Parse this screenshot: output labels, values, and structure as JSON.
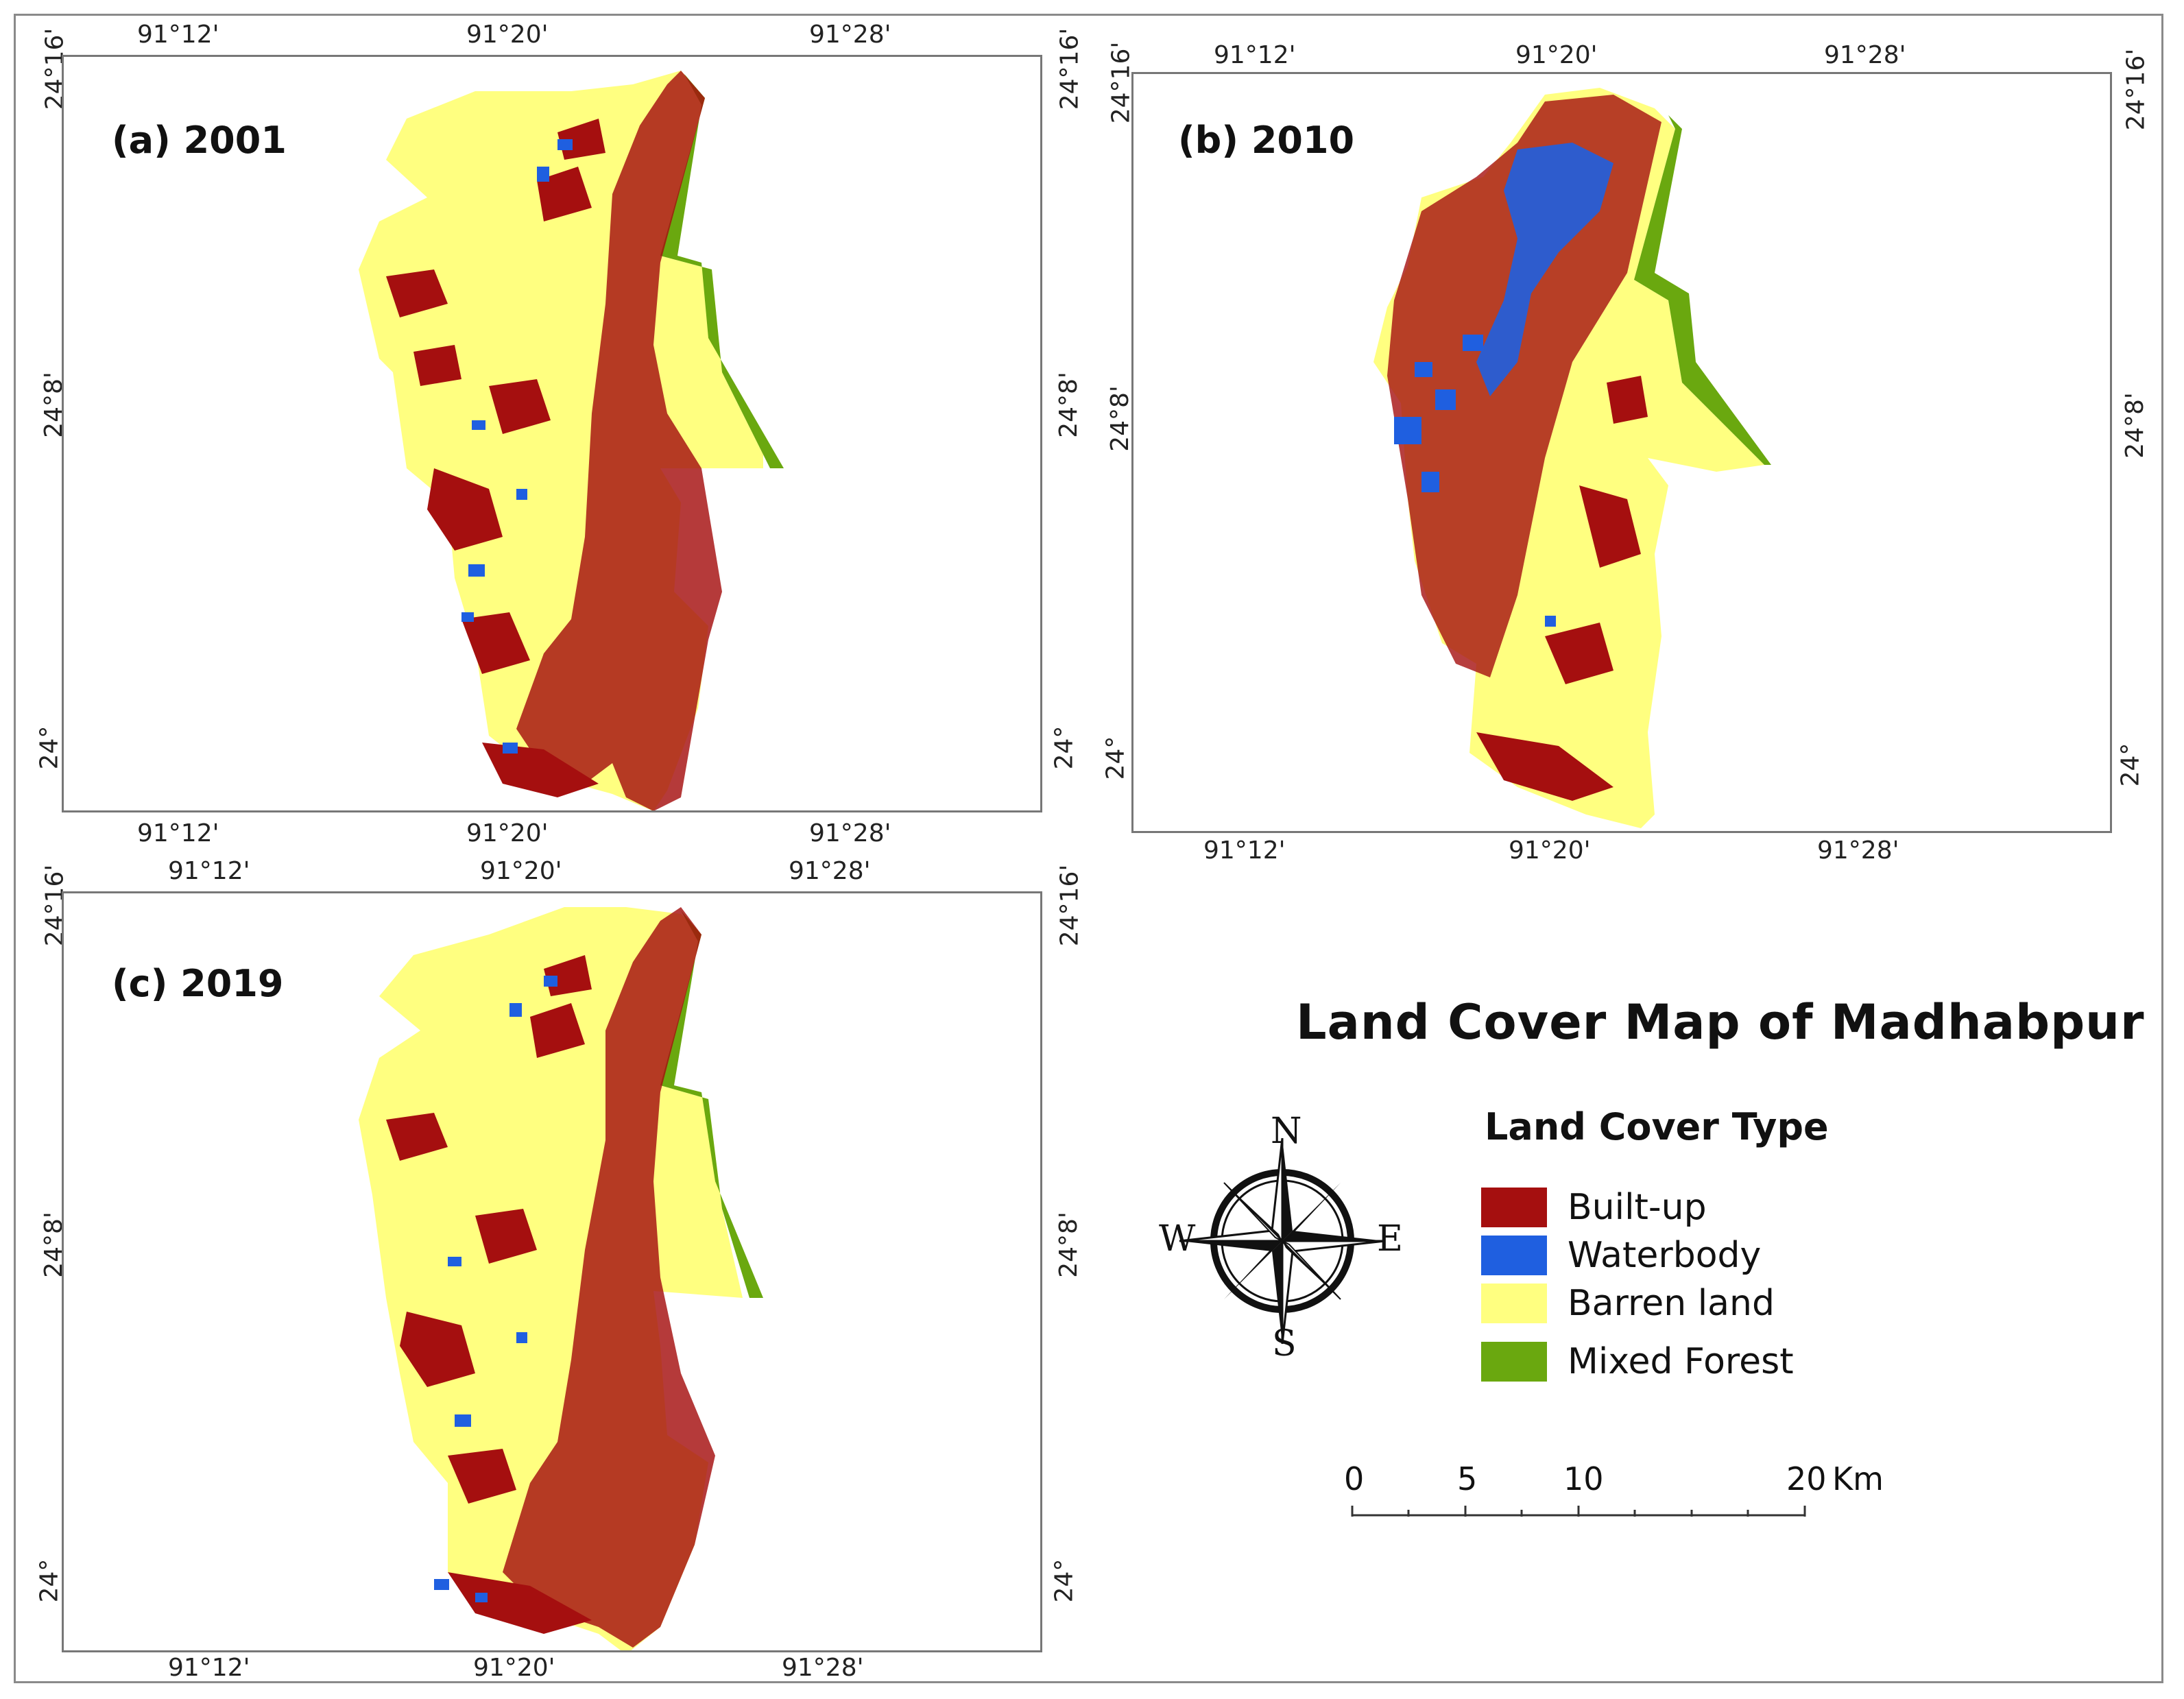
{
  "title": "Land Cover Map of Madhabpur",
  "legend": {
    "title": "Land Cover Type",
    "items": [
      {
        "label": "Built-up",
        "color": "#a50f0f"
      },
      {
        "label": "Waterbody",
        "color": "#1f5fe0"
      },
      {
        "label": "Barren land",
        "color": "#ffff80"
      },
      {
        "label": "Mixed Forest",
        "color": "#6aa80f"
      }
    ]
  },
  "panels": [
    {
      "label": "(a) 2001",
      "x_ticks": [
        "91°12'",
        "91°20'",
        "91°28'"
      ],
      "y_ticks": [
        "24°16'",
        "24°8'",
        "24°"
      ]
    },
    {
      "label": "(b) 2010",
      "x_ticks": [
        "91°12'",
        "91°20'",
        "91°28'"
      ],
      "y_ticks": [
        "24°16'",
        "24°8'",
        "24°"
      ]
    },
    {
      "label": "(c) 2019",
      "x_ticks": [
        "91°12'",
        "91°20'",
        "91°28'"
      ],
      "y_ticks": [
        "24°16'",
        "24°8'",
        "24°"
      ]
    }
  ],
  "compass": {
    "n": "N",
    "s": "S",
    "e": "E",
    "w": "W"
  },
  "scale_bar": {
    "labels": [
      "0",
      "5",
      "10",
      "20"
    ],
    "unit": "Km"
  }
}
